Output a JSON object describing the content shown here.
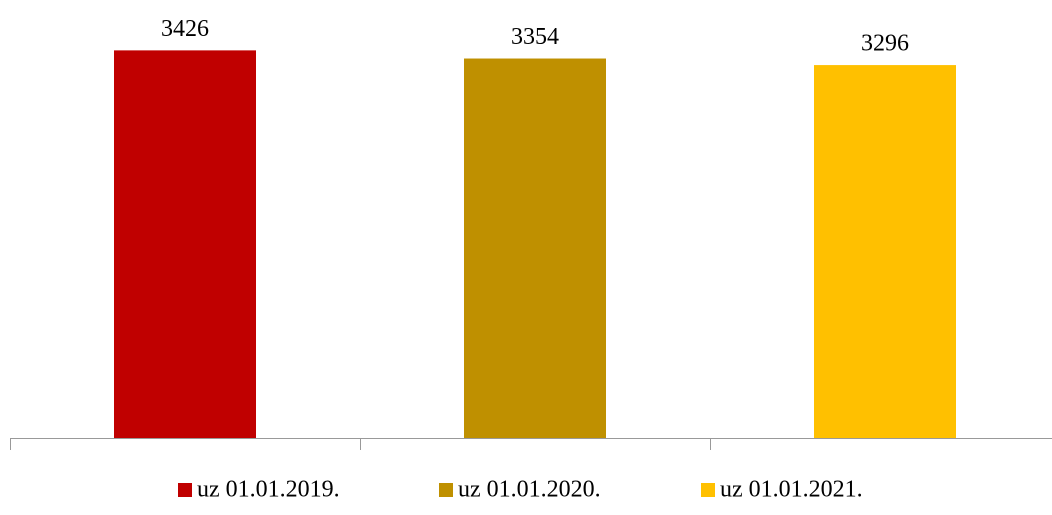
{
  "chart_data": {
    "type": "bar",
    "series": [
      {
        "name": "uz 01.01.2019.",
        "color": "#c00000",
        "values": [
          3426
        ]
      },
      {
        "name": "uz 01.01.2020.",
        "color": "#bf9000",
        "values": [
          3354
        ]
      },
      {
        "name": "uz 01.01.2021.",
        "color": "#ffc000",
        "values": [
          3296
        ]
      }
    ],
    "ylim": [
      0,
      3500
    ]
  }
}
